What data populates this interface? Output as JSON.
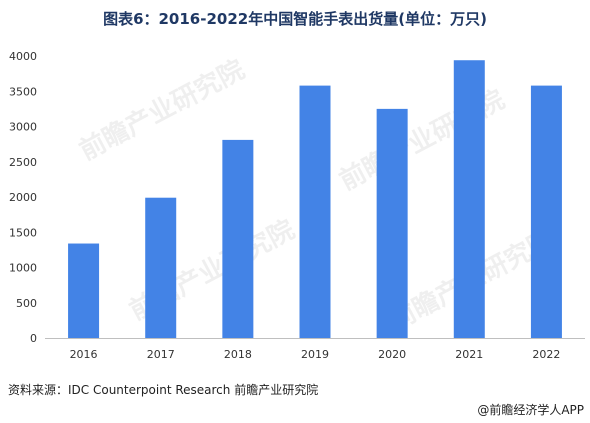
{
  "title": "图表6：2016-2022年中国智能手表出货量(单位：万只)",
  "source": "资料来源：IDC Counterpoint Research 前瞻产业研究院",
  "brand": "@前瞻经济学人APP",
  "watermark": "前瞻产业研究院",
  "colors": {
    "bar": "#4383e6",
    "title": "#1f3864"
  },
  "chart_data": {
    "type": "bar",
    "title": "图表6：2016-2022年中国智能手表出货量(单位：万只)",
    "categories": [
      "2016",
      "2017",
      "2018",
      "2019",
      "2020",
      "2021",
      "2022"
    ],
    "values": [
      1340,
      1990,
      2810,
      3580,
      3250,
      3940,
      3580
    ],
    "xlabel": "",
    "ylabel": "",
    "ylim": [
      0,
      4000
    ],
    "yticks": [
      "0",
      "500",
      "1000",
      "1500",
      "2000",
      "2500",
      "3000",
      "3500",
      "4000"
    ],
    "grid": false,
    "legend": "none"
  }
}
